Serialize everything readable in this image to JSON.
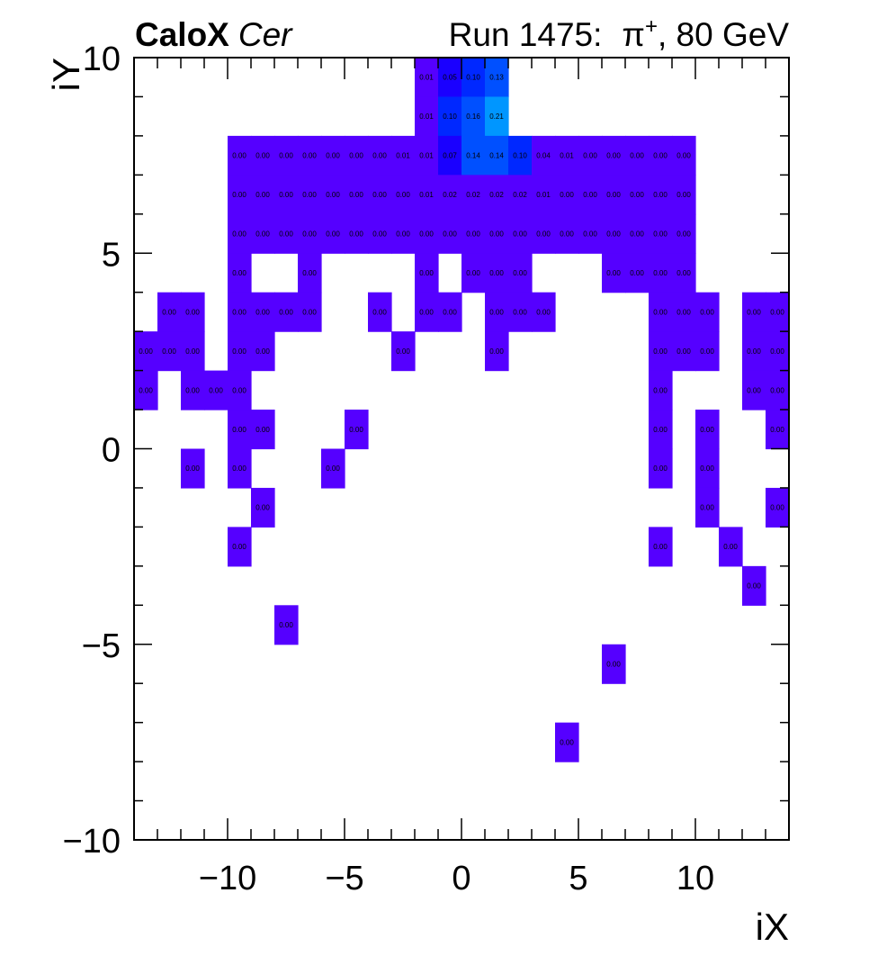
{
  "header": {
    "title_bold": "CaloX",
    "title_italic": "Cer",
    "run_label": "Run 1475:",
    "particle": "π",
    "particle_charge": "+",
    "energy_label": ", 80 GeV"
  },
  "chart_data": {
    "type": "heatmap",
    "xlabel": "iX",
    "ylabel": "iY",
    "xlim": [
      -14,
      14
    ],
    "ylim": [
      -10,
      10
    ],
    "xticks": [
      -10,
      -5,
      0,
      5,
      10
    ],
    "yticks": [
      -10,
      -5,
      0,
      5,
      10
    ],
    "xtick_labels": [
      "−10",
      "−5",
      "0",
      "5",
      "10"
    ],
    "ytick_labels": [
      "−10",
      "−5",
      "0",
      "5",
      "10"
    ],
    "grid": false,
    "colors": {
      "low": "#5500ff",
      "mid_low": "#1a00ff",
      "mid": "#0028ff",
      "mid_high": "#0050ff",
      "high": "#0096ff"
    },
    "cells": [
      {
        "x": -1.5,
        "y": 9.5,
        "value": 0.01
      },
      {
        "x": -0.5,
        "y": 9.5,
        "value": 0.05
      },
      {
        "x": 0.5,
        "y": 9.5,
        "value": 0.1
      },
      {
        "x": 1.5,
        "y": 9.5,
        "value": 0.13
      },
      {
        "x": -1.5,
        "y": 8.5,
        "value": 0.01
      },
      {
        "x": -0.5,
        "y": 8.5,
        "value": 0.1
      },
      {
        "x": 0.5,
        "y": 8.5,
        "value": 0.16
      },
      {
        "x": 1.5,
        "y": 8.5,
        "value": 0.21
      },
      {
        "x": -9.5,
        "y": 7.5,
        "value": 0.0
      },
      {
        "x": -8.5,
        "y": 7.5,
        "value": 0.0
      },
      {
        "x": -7.5,
        "y": 7.5,
        "value": 0.0
      },
      {
        "x": -6.5,
        "y": 7.5,
        "value": 0.0
      },
      {
        "x": -5.5,
        "y": 7.5,
        "value": 0.0
      },
      {
        "x": -4.5,
        "y": 7.5,
        "value": 0.0
      },
      {
        "x": -3.5,
        "y": 7.5,
        "value": 0.0
      },
      {
        "x": -2.5,
        "y": 7.5,
        "value": 0.01
      },
      {
        "x": -1.5,
        "y": 7.5,
        "value": 0.01
      },
      {
        "x": -0.5,
        "y": 7.5,
        "value": 0.07
      },
      {
        "x": 0.5,
        "y": 7.5,
        "value": 0.14
      },
      {
        "x": 1.5,
        "y": 7.5,
        "value": 0.14
      },
      {
        "x": 2.5,
        "y": 7.5,
        "value": 0.1
      },
      {
        "x": 3.5,
        "y": 7.5,
        "value": 0.04
      },
      {
        "x": 4.5,
        "y": 7.5,
        "value": 0.01
      },
      {
        "x": 5.5,
        "y": 7.5,
        "value": 0.0
      },
      {
        "x": 6.5,
        "y": 7.5,
        "value": 0.0
      },
      {
        "x": 7.5,
        "y": 7.5,
        "value": 0.0
      },
      {
        "x": 8.5,
        "y": 7.5,
        "value": 0.0
      },
      {
        "x": 9.5,
        "y": 7.5,
        "value": 0.0
      },
      {
        "x": -9.5,
        "y": 6.5,
        "value": 0.0
      },
      {
        "x": -8.5,
        "y": 6.5,
        "value": 0.0
      },
      {
        "x": -7.5,
        "y": 6.5,
        "value": 0.0
      },
      {
        "x": -6.5,
        "y": 6.5,
        "value": 0.0
      },
      {
        "x": -5.5,
        "y": 6.5,
        "value": 0.0
      },
      {
        "x": -4.5,
        "y": 6.5,
        "value": 0.0
      },
      {
        "x": -3.5,
        "y": 6.5,
        "value": 0.0
      },
      {
        "x": -2.5,
        "y": 6.5,
        "value": 0.0
      },
      {
        "x": -1.5,
        "y": 6.5,
        "value": 0.01
      },
      {
        "x": -0.5,
        "y": 6.5,
        "value": 0.02
      },
      {
        "x": 0.5,
        "y": 6.5,
        "value": 0.02
      },
      {
        "x": 1.5,
        "y": 6.5,
        "value": 0.02
      },
      {
        "x": 2.5,
        "y": 6.5,
        "value": 0.02
      },
      {
        "x": 3.5,
        "y": 6.5,
        "value": 0.01
      },
      {
        "x": 4.5,
        "y": 6.5,
        "value": 0.0
      },
      {
        "x": 5.5,
        "y": 6.5,
        "value": 0.0
      },
      {
        "x": 6.5,
        "y": 6.5,
        "value": 0.0
      },
      {
        "x": 7.5,
        "y": 6.5,
        "value": 0.0
      },
      {
        "x": 8.5,
        "y": 6.5,
        "value": 0.0
      },
      {
        "x": 9.5,
        "y": 6.5,
        "value": 0.0
      },
      {
        "x": -9.5,
        "y": 5.5,
        "value": 0.0
      },
      {
        "x": -8.5,
        "y": 5.5,
        "value": 0.0
      },
      {
        "x": -7.5,
        "y": 5.5,
        "value": 0.0
      },
      {
        "x": -6.5,
        "y": 5.5,
        "value": 0.0
      },
      {
        "x": -5.5,
        "y": 5.5,
        "value": 0.0
      },
      {
        "x": -4.5,
        "y": 5.5,
        "value": 0.0
      },
      {
        "x": -3.5,
        "y": 5.5,
        "value": 0.0
      },
      {
        "x": -2.5,
        "y": 5.5,
        "value": 0.0
      },
      {
        "x": -1.5,
        "y": 5.5,
        "value": 0.0
      },
      {
        "x": -0.5,
        "y": 5.5,
        "value": 0.0
      },
      {
        "x": 0.5,
        "y": 5.5,
        "value": 0.0
      },
      {
        "x": 1.5,
        "y": 5.5,
        "value": 0.0
      },
      {
        "x": 2.5,
        "y": 5.5,
        "value": 0.0
      },
      {
        "x": 3.5,
        "y": 5.5,
        "value": 0.0
      },
      {
        "x": 4.5,
        "y": 5.5,
        "value": 0.0
      },
      {
        "x": 5.5,
        "y": 5.5,
        "value": 0.0
      },
      {
        "x": 6.5,
        "y": 5.5,
        "value": 0.0
      },
      {
        "x": 7.5,
        "y": 5.5,
        "value": 0.0
      },
      {
        "x": 8.5,
        "y": 5.5,
        "value": 0.0
      },
      {
        "x": 9.5,
        "y": 5.5,
        "value": 0.0
      },
      {
        "x": -9.5,
        "y": 4.5,
        "value": 0.0
      },
      {
        "x": -6.5,
        "y": 4.5,
        "value": 0.0
      },
      {
        "x": -1.5,
        "y": 4.5,
        "value": 0.0
      },
      {
        "x": 0.5,
        "y": 4.5,
        "value": 0.0
      },
      {
        "x": 1.5,
        "y": 4.5,
        "value": 0.0
      },
      {
        "x": 2.5,
        "y": 4.5,
        "value": 0.0
      },
      {
        "x": 6.5,
        "y": 4.5,
        "value": 0.0
      },
      {
        "x": 7.5,
        "y": 4.5,
        "value": 0.0
      },
      {
        "x": 8.5,
        "y": 4.5,
        "value": 0.0
      },
      {
        "x": 9.5,
        "y": 4.5,
        "value": 0.0
      },
      {
        "x": -12.5,
        "y": 3.5,
        "value": 0.0
      },
      {
        "x": -11.5,
        "y": 3.5,
        "value": 0.0
      },
      {
        "x": -9.5,
        "y": 3.5,
        "value": 0.0
      },
      {
        "x": -8.5,
        "y": 3.5,
        "value": 0.0
      },
      {
        "x": -7.5,
        "y": 3.5,
        "value": 0.0
      },
      {
        "x": -6.5,
        "y": 3.5,
        "value": 0.0
      },
      {
        "x": -3.5,
        "y": 3.5,
        "value": 0.0
      },
      {
        "x": -1.5,
        "y": 3.5,
        "value": 0.0
      },
      {
        "x": -0.5,
        "y": 3.5,
        "value": 0.0
      },
      {
        "x": 1.5,
        "y": 3.5,
        "value": 0.0
      },
      {
        "x": 2.5,
        "y": 3.5,
        "value": 0.0
      },
      {
        "x": 3.5,
        "y": 3.5,
        "value": 0.0
      },
      {
        "x": 8.5,
        "y": 3.5,
        "value": 0.0
      },
      {
        "x": 9.5,
        "y": 3.5,
        "value": 0.0
      },
      {
        "x": 10.5,
        "y": 3.5,
        "value": 0.0
      },
      {
        "x": 12.5,
        "y": 3.5,
        "value": 0.0
      },
      {
        "x": 13.5,
        "y": 3.5,
        "value": 0.0
      },
      {
        "x": -13.5,
        "y": 2.5,
        "value": 0.0
      },
      {
        "x": -12.5,
        "y": 2.5,
        "value": 0.0
      },
      {
        "x": -11.5,
        "y": 2.5,
        "value": 0.0
      },
      {
        "x": -9.5,
        "y": 2.5,
        "value": 0.0
      },
      {
        "x": -8.5,
        "y": 2.5,
        "value": 0.0
      },
      {
        "x": -2.5,
        "y": 2.5,
        "value": 0.0
      },
      {
        "x": 1.5,
        "y": 2.5,
        "value": 0.0
      },
      {
        "x": 8.5,
        "y": 2.5,
        "value": 0.0
      },
      {
        "x": 9.5,
        "y": 2.5,
        "value": 0.0
      },
      {
        "x": 10.5,
        "y": 2.5,
        "value": 0.0
      },
      {
        "x": 12.5,
        "y": 2.5,
        "value": 0.0
      },
      {
        "x": 13.5,
        "y": 2.5,
        "value": 0.0
      },
      {
        "x": -13.5,
        "y": 1.5,
        "value": 0.0
      },
      {
        "x": -11.5,
        "y": 1.5,
        "value": 0.0
      },
      {
        "x": -10.5,
        "y": 1.5,
        "value": 0.0
      },
      {
        "x": -9.5,
        "y": 1.5,
        "value": 0.0
      },
      {
        "x": 8.5,
        "y": 1.5,
        "value": 0.0
      },
      {
        "x": 12.5,
        "y": 1.5,
        "value": 0.0
      },
      {
        "x": 13.5,
        "y": 1.5,
        "value": 0.0
      },
      {
        "x": -9.5,
        "y": 0.5,
        "value": 0.0
      },
      {
        "x": -8.5,
        "y": 0.5,
        "value": 0.0
      },
      {
        "x": -4.5,
        "y": 0.5,
        "value": 0.0
      },
      {
        "x": 8.5,
        "y": 0.5,
        "value": 0.0
      },
      {
        "x": 10.5,
        "y": 0.5,
        "value": 0.0
      },
      {
        "x": 13.5,
        "y": 0.5,
        "value": 0.0
      },
      {
        "x": -11.5,
        "y": -0.5,
        "value": 0.0
      },
      {
        "x": -9.5,
        "y": -0.5,
        "value": 0.0
      },
      {
        "x": -5.5,
        "y": -0.5,
        "value": 0.0
      },
      {
        "x": 8.5,
        "y": -0.5,
        "value": 0.0
      },
      {
        "x": 10.5,
        "y": -0.5,
        "value": 0.0
      },
      {
        "x": -8.5,
        "y": -1.5,
        "value": 0.0
      },
      {
        "x": 10.5,
        "y": -1.5,
        "value": 0.0
      },
      {
        "x": 13.5,
        "y": -1.5,
        "value": 0.0
      },
      {
        "x": -9.5,
        "y": -2.5,
        "value": 0.0
      },
      {
        "x": 8.5,
        "y": -2.5,
        "value": 0.0
      },
      {
        "x": 11.5,
        "y": -2.5,
        "value": 0.0
      },
      {
        "x": 12.5,
        "y": -3.5,
        "value": 0.0
      },
      {
        "x": -7.5,
        "y": -4.5,
        "value": 0.0
      },
      {
        "x": 6.5,
        "y": -5.5,
        "value": 0.0
      },
      {
        "x": 4.5,
        "y": -7.5,
        "value": 0.0
      }
    ]
  }
}
